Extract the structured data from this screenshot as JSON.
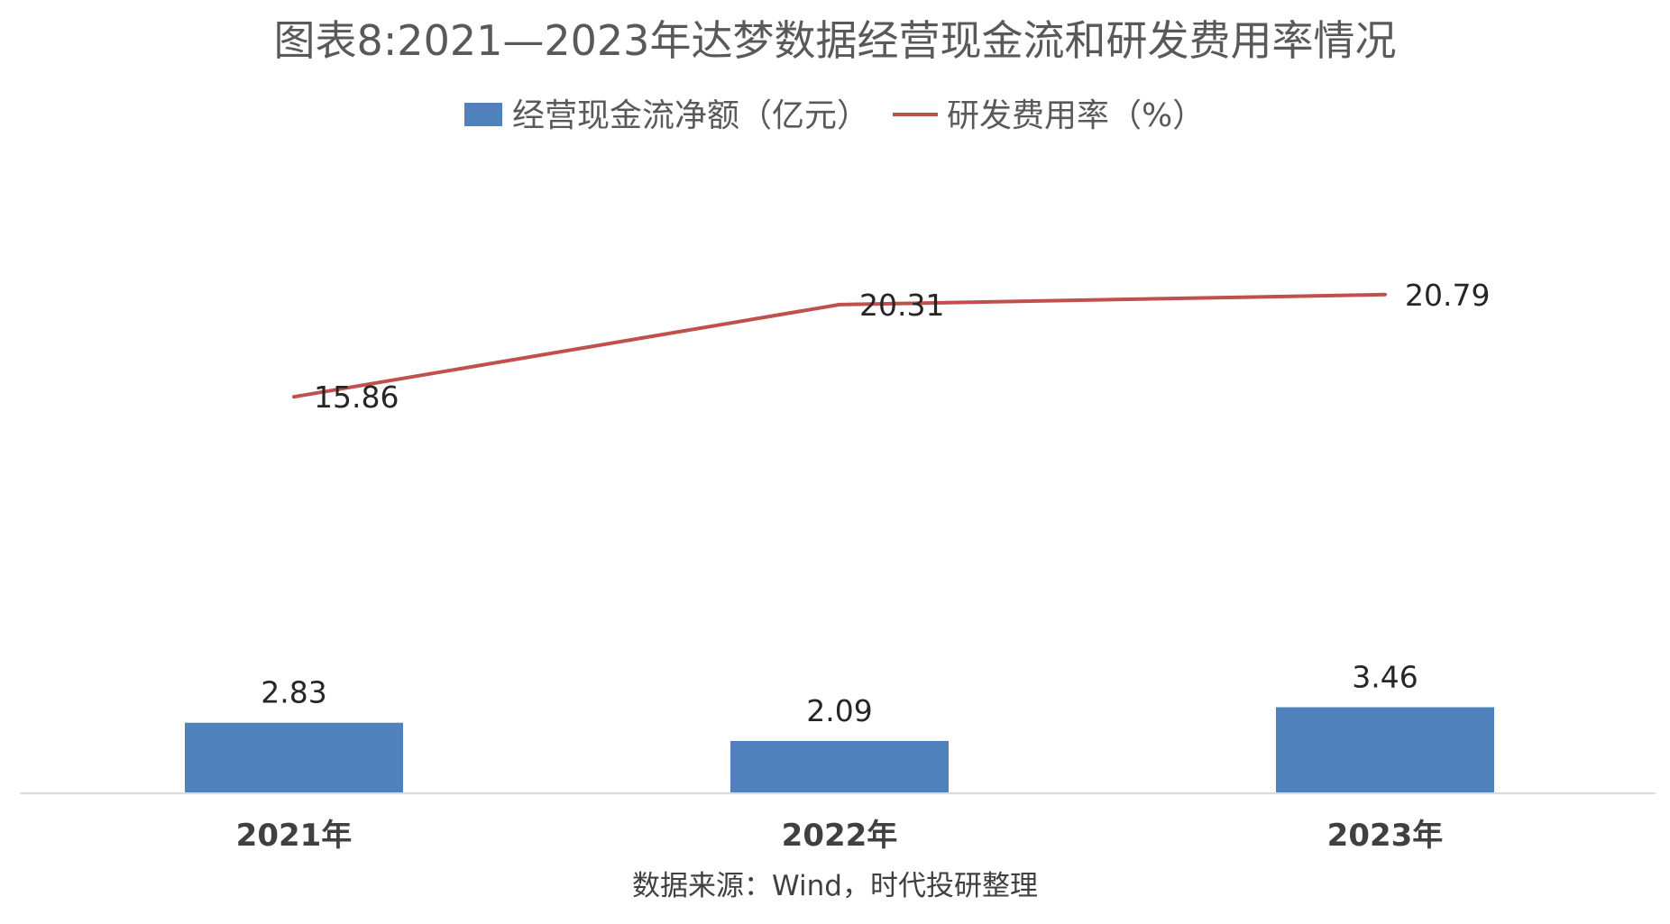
{
  "chart_data": {
    "type": "bar",
    "title": "图表8:2021—2023年达梦数据经营现金流和研发费用率情况",
    "source": "数据来源：Wind，时代投研整理",
    "categories": [
      "2021年",
      "2022年",
      "2023年"
    ],
    "legend_position": "top-center",
    "grid": false,
    "series": [
      {
        "name": "经营现金流净额（亿元）",
        "type": "bar",
        "values": [
          2.83,
          2.09,
          3.46
        ],
        "color": "#4F81BD"
      },
      {
        "name": "研发费用率（%）",
        "type": "line",
        "values": [
          15.86,
          20.31,
          20.79
        ],
        "color": "#C0504D"
      }
    ]
  }
}
